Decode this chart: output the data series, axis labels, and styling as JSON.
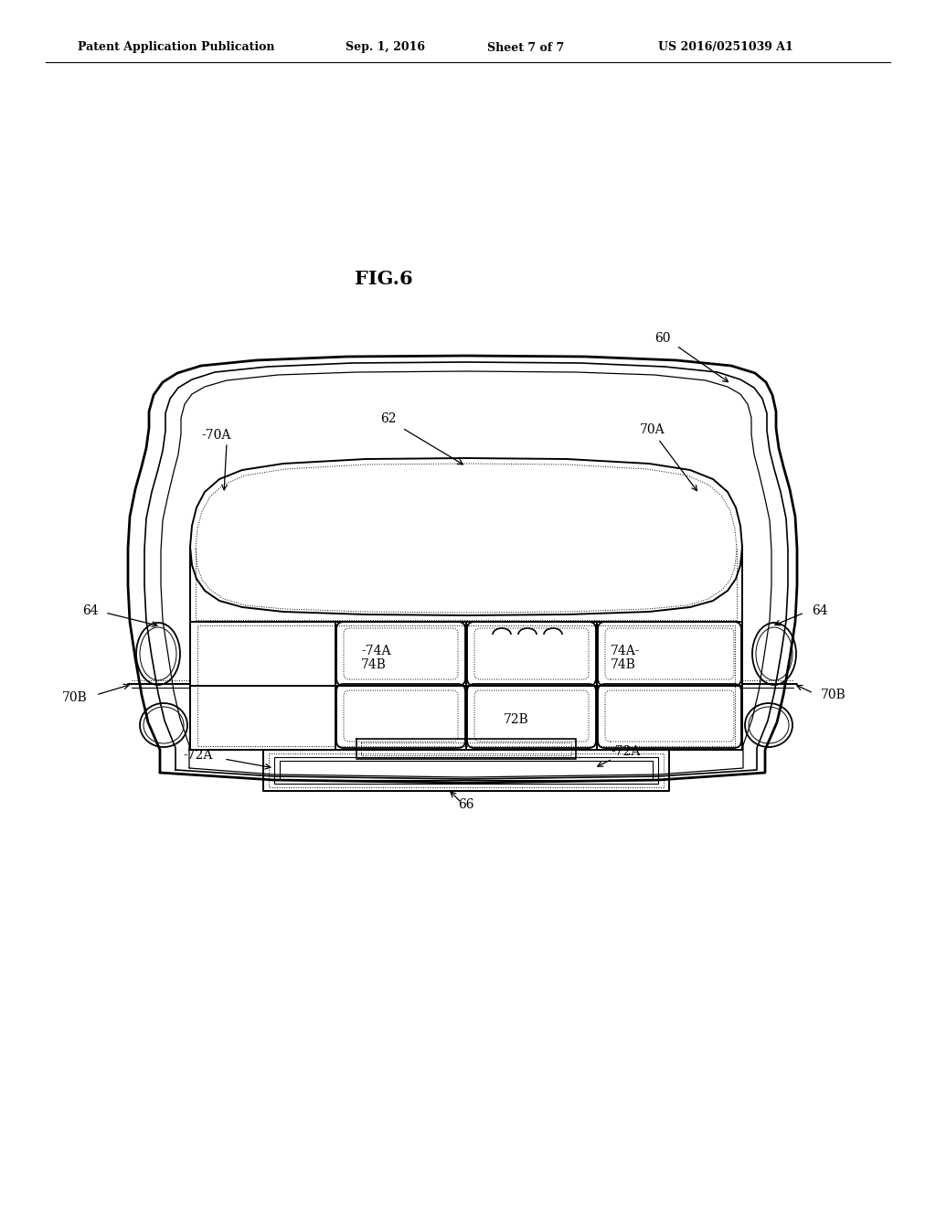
{
  "bg_color": "#ffffff",
  "line_color": "#000000",
  "header_text": "Patent Application Publication",
  "header_date": "Sep. 1, 2016",
  "header_sheet": "Sheet 7 of 7",
  "header_patent": "US 2016/0251039 A1",
  "fig_label": "FIG.6",
  "figw": 10.24,
  "figh": 13.2,
  "dpi": 100
}
